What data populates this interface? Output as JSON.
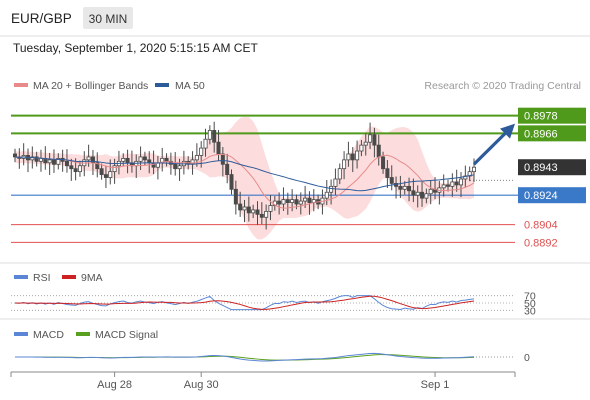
{
  "header": {
    "symbol": "EUR/GBP",
    "timeframe": "30 MIN",
    "datetime": "Tuesday, September 1, 2020 5:15:15 AM CET"
  },
  "colors": {
    "candle": "#4a4a4a",
    "bollinger_fill": "#fbd0d0",
    "ma20": "#e88a8a",
    "ma50": "#2d5b9a",
    "resistance": "#4f9a1a",
    "support": "#3a78c8",
    "minor": "#e05050",
    "arrow": "#2d5b9a",
    "price_box": "#333333",
    "rsi": "#5b86d6",
    "rsi_ma": "#cc2222",
    "macd": "#5b86d6",
    "macd_signal": "#5aa020"
  },
  "chart_data": [
    {
      "type": "candlestick",
      "name": "price",
      "legend": [
        {
          "label": "MA 20 + Bollinger Bands",
          "color": "#e88a8a"
        },
        {
          "label": "MA 50",
          "color": "#2d5b9a"
        }
      ],
      "watermark": "Research © 2020 Trading Central",
      "ylim": [
        0.888,
        0.899
      ],
      "levels": [
        {
          "value": 0.8978,
          "label": "0.8978",
          "kind": "resistance"
        },
        {
          "value": 0.8966,
          "label": "0.8966",
          "kind": "resistance"
        },
        {
          "value": 0.8943,
          "label": "0.8943",
          "kind": "current"
        },
        {
          "value": 0.8924,
          "label": "0.8924",
          "kind": "support"
        },
        {
          "value": 0.8904,
          "label": "0.8904",
          "kind": "minor"
        },
        {
          "value": 0.8892,
          "label": "0.8892",
          "kind": "minor"
        }
      ],
      "arrow_target": 0.8978,
      "closes": [
        0.895,
        0.8949,
        0.8951,
        0.8948,
        0.895,
        0.8947,
        0.8949,
        0.8946,
        0.8948,
        0.8945,
        0.8949,
        0.8947,
        0.8944,
        0.8942,
        0.894,
        0.8944,
        0.8948,
        0.895,
        0.8946,
        0.8942,
        0.8938,
        0.8936,
        0.894,
        0.8944,
        0.8947,
        0.8949,
        0.8946,
        0.8944,
        0.8947,
        0.895,
        0.8948,
        0.8946,
        0.8943,
        0.8946,
        0.8949,
        0.8947,
        0.8945,
        0.8942,
        0.8944,
        0.8947,
        0.8945,
        0.8948,
        0.8951,
        0.8956,
        0.8962,
        0.8968,
        0.896,
        0.8952,
        0.8945,
        0.8938,
        0.8928,
        0.8918,
        0.8914,
        0.8916,
        0.8912,
        0.8914,
        0.8911,
        0.8909,
        0.8913,
        0.8917,
        0.892,
        0.8918,
        0.8921,
        0.8919,
        0.8921,
        0.8918,
        0.892,
        0.8922,
        0.8919,
        0.8921,
        0.8918,
        0.8922,
        0.8926,
        0.893,
        0.8935,
        0.8942,
        0.8948,
        0.8952,
        0.8948,
        0.8954,
        0.8958,
        0.896,
        0.8965,
        0.8958,
        0.895,
        0.8942,
        0.8936,
        0.8932,
        0.893,
        0.8928,
        0.893,
        0.8927,
        0.8924,
        0.8926,
        0.8922,
        0.8925,
        0.8928,
        0.8926,
        0.8929,
        0.8931,
        0.893,
        0.8933,
        0.8931,
        0.8935,
        0.8937,
        0.894,
        0.8943
      ]
    },
    {
      "type": "line",
      "name": "RSI",
      "legend": [
        {
          "label": "RSI",
          "color": "#5b86d6"
        },
        {
          "label": "9MA",
          "color": "#cc2222"
        }
      ],
      "ylim": [
        20,
        80
      ],
      "ticks": [
        "70",
        "50",
        "30"
      ],
      "reference_lines": [
        70,
        50,
        30
      ]
    },
    {
      "type": "line",
      "name": "MACD",
      "legend": [
        {
          "label": "MACD",
          "color": "#5b86d6"
        },
        {
          "label": "MACD Signal",
          "color": "#5aa020"
        }
      ],
      "ticks": [
        "0"
      ],
      "reference_lines": [
        0
      ]
    },
    {
      "type": "axis",
      "x_labels": [
        {
          "label": "Aug 28",
          "index": 23
        },
        {
          "label": "Aug 30",
          "index": 43
        },
        {
          "label": "Sep 1",
          "index": 97
        }
      ]
    }
  ]
}
